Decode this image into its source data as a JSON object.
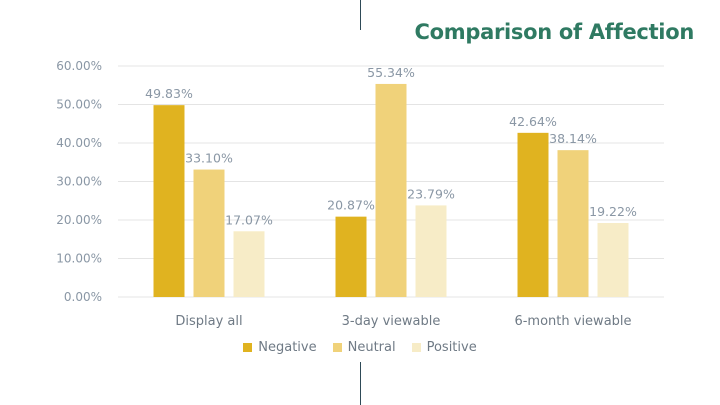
{
  "title": "Comparison of Affection",
  "colors": {
    "title": "#2f7a62",
    "grid": "#e4e4e4",
    "axis_text": "#8a97a5",
    "cat_text": "#6f7a85",
    "label_text": "#8a97a5",
    "accent_line": "#2e4a57"
  },
  "chart_data": {
    "type": "bar",
    "title": "Comparison of Affection",
    "xlabel": "",
    "ylabel": "",
    "categories": [
      "Display all",
      "3-day viewable",
      "6-month viewable"
    ],
    "series": [
      {
        "name": "Negative",
        "color": "#e0b320",
        "values": [
          49.83,
          20.87,
          42.64
        ],
        "labels": [
          "49.83%",
          "20.87%",
          "42.64%"
        ]
      },
      {
        "name": "Neutral",
        "color": "#f0d27a",
        "values": [
          33.1,
          55.34,
          38.14
        ],
        "labels": [
          "33.10%",
          "55.34%",
          "38.14%"
        ]
      },
      {
        "name": "Positive",
        "color": "#f7ecc7",
        "values": [
          17.07,
          23.79,
          19.22
        ],
        "labels": [
          "17.07%",
          "23.79%",
          "19.22%"
        ]
      }
    ],
    "ylim": [
      0,
      60
    ],
    "yticks": [
      0,
      10,
      20,
      30,
      40,
      50,
      60
    ],
    "ytick_labels": [
      "0.00%",
      "10.00%",
      "20.00%",
      "30.00%",
      "40.00%",
      "50.00%",
      "60.00%"
    ],
    "grid": true,
    "legend": "bottom"
  }
}
